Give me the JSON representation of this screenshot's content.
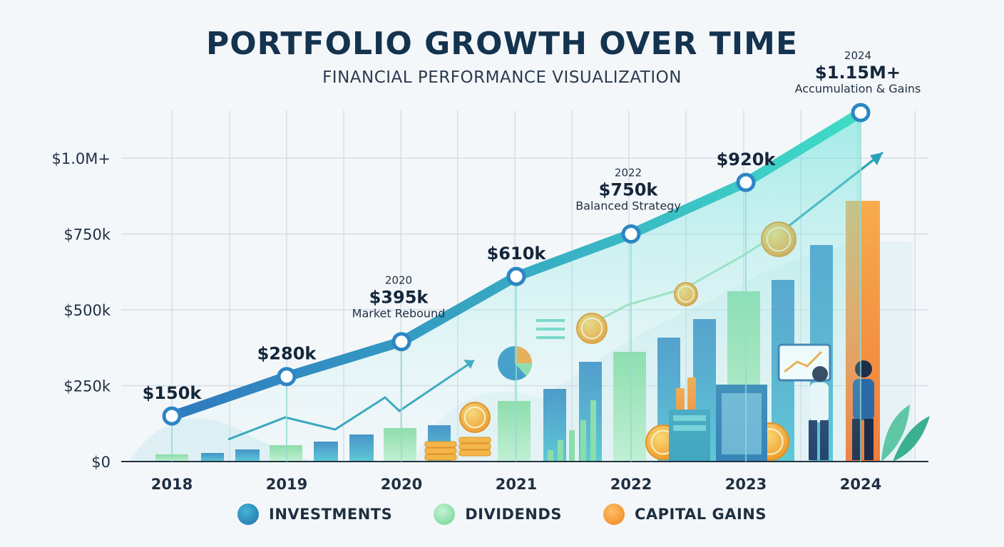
{
  "header": {
    "title": "PORTFOLIO GROWTH OVER TIME",
    "subtitle": "FINANCIAL PERFORMANCE VISUALIZATION"
  },
  "colors": {
    "investments": "#2f8fc4",
    "dividends": "#86dca4",
    "capital_gains": "#f5a13a",
    "line_start": "#2f79c0",
    "line_end": "#3fdcc6",
    "text_dark": "#14334f"
  },
  "chart_data": {
    "type": "line",
    "title": "PORTFOLIO GROWTH OVER TIME",
    "subtitle": "FINANCIAL PERFORMANCE VISUALIZATION",
    "xlabel": "",
    "ylabel": "",
    "x": [
      "2018",
      "2019",
      "2020",
      "2021",
      "2022",
      "2023",
      "2024"
    ],
    "y_ticks": [
      "$0",
      "$250k",
      "$500k",
      "$750k",
      "$1.0M+"
    ],
    "y_tick_values": [
      0,
      250,
      500,
      750,
      1000
    ],
    "ylim": [
      0,
      1150
    ],
    "grid": true,
    "legend_position": "bottom",
    "series": [
      {
        "name": "",
        "values": [
          150,
          280,
          395,
          610,
          750,
          920,
          1150
        ],
        "labels": [
          "$150k",
          "$280k",
          "$395k",
          "$610k",
          "$750k",
          "$920k",
          "$1.15M+"
        ]
      }
    ],
    "annotations": [
      {
        "year": "2020",
        "value_label": "$395k",
        "note": "Market Rebound"
      },
      {
        "year": "2022",
        "value_label": "$750k",
        "note": "Balanced Strategy"
      },
      {
        "year": "2024",
        "value_label": "$1.15M+",
        "note": "Accumulation & Gains"
      }
    ],
    "legend": [
      "INVESTMENTS",
      "DIVIDENDS",
      "CAPITAL GAINS"
    ]
  }
}
